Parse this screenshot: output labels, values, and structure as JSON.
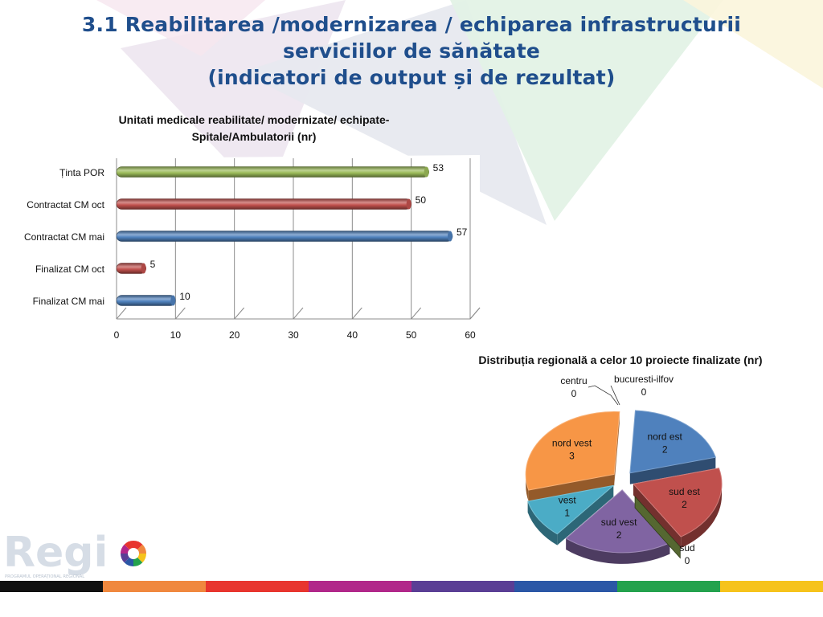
{
  "page": {
    "title_lines": [
      "3.1 Reabilitarea /modernizarea / echiparea infrastructurii",
      "serviciilor de sănătate",
      "(indicatori de output și de rezultat)"
    ]
  },
  "colors": {
    "title": "#1f4e8c",
    "bar_green": "#9bbb59",
    "bar_red": "#c0504d",
    "bar_blue": "#4f81bd",
    "pie_blue": "#4f81bd",
    "pie_red": "#c0504d",
    "pie_green": "#9bbb59",
    "pie_purple": "#8064a2",
    "pie_teal": "#4bacc6",
    "pie_orange": "#f79646"
  },
  "logo": {
    "text": "Regi",
    "subtitle": "PROGRAMUL OPERAȚIONAL REGIONAL"
  },
  "color_band": [
    "#111111",
    "#f0883e",
    "#e8352e",
    "#b1278a",
    "#5a3e95",
    "#2b57a6",
    "#23a24d",
    "#f6c31c"
  ],
  "chart_data": [
    {
      "type": "bar",
      "orientation": "horizontal",
      "title": "Unitati medicale reabilitate/ modernizate/ echipate- Spitale/Ambulatorii (nr)",
      "title_lines": [
        "Unitati medicale reabilitate/ modernizate/ echipate-",
        "Spitale/Ambulatorii (nr)"
      ],
      "categories": [
        "Ținta POR",
        "Contractat CM oct",
        "Contractat CM mai",
        "Finalizat CM oct",
        "Finalizat CM mai"
      ],
      "values": [
        53,
        50,
        57,
        5,
        10
      ],
      "bar_colors": [
        "bar_green",
        "bar_red",
        "bar_blue",
        "bar_red",
        "bar_blue"
      ],
      "xlim": [
        0,
        60
      ],
      "xticks": [
        0,
        10,
        20,
        30,
        40,
        50,
        60
      ],
      "grid": true,
      "legend": "none"
    },
    {
      "type": "pie",
      "title": "Distribuția regională a celor 10 proiecte finalizate (nr)",
      "slices": [
        {
          "label": "nord est",
          "value": 2,
          "color": "pie_blue"
        },
        {
          "label": "sud est",
          "value": 2,
          "color": "pie_red"
        },
        {
          "label": "sud",
          "value": 0,
          "color": "pie_green"
        },
        {
          "label": "sud vest",
          "value": 2,
          "color": "pie_purple"
        },
        {
          "label": "vest",
          "value": 1,
          "color": "pie_teal"
        },
        {
          "label": "nord vest",
          "value": 3,
          "color": "pie_orange"
        },
        {
          "label": "centru",
          "value": 0,
          "color": "pie_blue"
        },
        {
          "label": "bucuresti-ilfov",
          "value": 0,
          "color": "pie_blue"
        }
      ],
      "exploded": true,
      "legend": "none"
    }
  ]
}
